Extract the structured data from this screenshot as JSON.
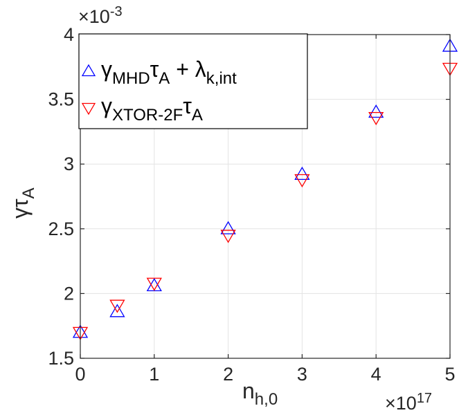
{
  "chart_data": {
    "type": "scatter",
    "xlabel": {
      "base": "n",
      "sub": "h,0"
    },
    "ylabel": {
      "base": "γτ",
      "sub": "A"
    },
    "x_multiplier": {
      "base": "×10",
      "exp": "17"
    },
    "y_multiplier": {
      "base": "×10",
      "exp": "-3"
    },
    "xlim": [
      0,
      5
    ],
    "ylim": [
      1.5,
      4.0
    ],
    "xticks": [
      0,
      1,
      2,
      3,
      4,
      5
    ],
    "xtick_labels": [
      "0",
      "1",
      "2",
      "3",
      "4",
      "5"
    ],
    "yticks": [
      1.5,
      2,
      2.5,
      3,
      3.5,
      4
    ],
    "ytick_labels": [
      "1.5",
      "2",
      "2.5",
      "3",
      "3.5",
      "4"
    ],
    "grid": true,
    "legend_position": "top-left",
    "series": [
      {
        "marker": "triangle-up",
        "color": "#0000ff",
        "legend": [
          {
            "t": "γ",
            "s": "normal"
          },
          {
            "t": "MHD",
            "s": "sub"
          },
          {
            "t": "τ",
            "s": "normal"
          },
          {
            "t": "A",
            "s": "sub"
          },
          {
            "t": " + λ",
            "s": "normal"
          },
          {
            "t": "k,int",
            "s": "sub"
          }
        ],
        "x": [
          0,
          0.5,
          1,
          2,
          3,
          4,
          5
        ],
        "y": [
          1.7,
          1.86,
          2.06,
          2.5,
          2.92,
          3.4,
          3.91
        ]
      },
      {
        "marker": "triangle-down",
        "color": "#ff0000",
        "legend": [
          {
            "t": "γ",
            "s": "normal"
          },
          {
            "t": "XTOR-2F",
            "s": "sub"
          },
          {
            "t": "τ",
            "s": "normal"
          },
          {
            "t": "A",
            "s": "sub"
          }
        ],
        "x": [
          0,
          0.5,
          1,
          2,
          3,
          4,
          5
        ],
        "y": [
          1.7,
          1.91,
          2.08,
          2.45,
          2.88,
          3.36,
          3.74
        ]
      }
    ]
  }
}
